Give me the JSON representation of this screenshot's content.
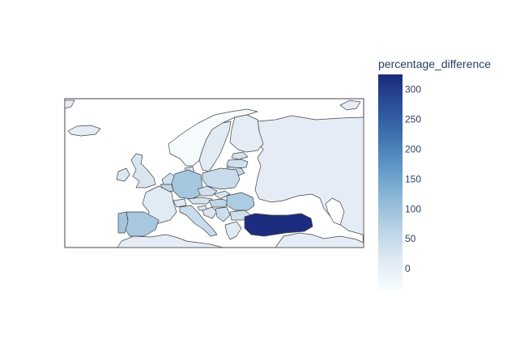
{
  "colorbar": {
    "title": "percentage_difference",
    "ticks": [
      "0",
      "50",
      "100",
      "150",
      "200",
      "250",
      "300"
    ],
    "tick_values": [
      0,
      50,
      100,
      150,
      200,
      250,
      300
    ],
    "range": [
      -35,
      325
    ],
    "colorscale": [
      "#f7fcfd",
      "#dfe9f3",
      "#b8d2e5",
      "#8cb8d6",
      "#5f97c7",
      "#3f71b0",
      "#2b4f98",
      "#1b2b7d"
    ]
  },
  "map": {
    "region": "Europe",
    "background_land": "#e5ecf6",
    "ocean": "#ffffff",
    "countries": [
      {
        "name": "Turkey",
        "value": 322
      },
      {
        "name": "Portugal",
        "value": 92
      },
      {
        "name": "Spain",
        "value": 87
      },
      {
        "name": "Germany",
        "value": 90
      },
      {
        "name": "Romania",
        "value": 80
      },
      {
        "name": "Poland",
        "value": 48
      },
      {
        "name": "Czechia",
        "value": 38
      },
      {
        "name": "Hungary",
        "value": 60
      },
      {
        "name": "Italy",
        "value": 45
      },
      {
        "name": "Austria",
        "value": 30
      },
      {
        "name": "Bulgaria",
        "value": 40
      },
      {
        "name": "Slovakia",
        "value": 30
      },
      {
        "name": "Lithuania",
        "value": 55
      },
      {
        "name": "Latvia",
        "value": 40
      },
      {
        "name": "Estonia",
        "value": 30
      },
      {
        "name": "Belgium",
        "value": 60
      },
      {
        "name": "Netherlands",
        "value": 35
      },
      {
        "name": "Denmark",
        "value": 30
      },
      {
        "name": "United Kingdom",
        "value": 25
      },
      {
        "name": "Ireland",
        "value": 20
      },
      {
        "name": "France",
        "value": 12
      },
      {
        "name": "Sweden",
        "value": 12
      },
      {
        "name": "Finland",
        "value": 5
      },
      {
        "name": "Norway",
        "value": -30
      },
      {
        "name": "Switzerland",
        "value": 18
      },
      {
        "name": "Croatia",
        "value": 25
      },
      {
        "name": "Serbia",
        "value": 40
      },
      {
        "name": "Greece",
        "value": 12
      },
      {
        "name": "Slovenia",
        "value": 20
      }
    ]
  }
}
